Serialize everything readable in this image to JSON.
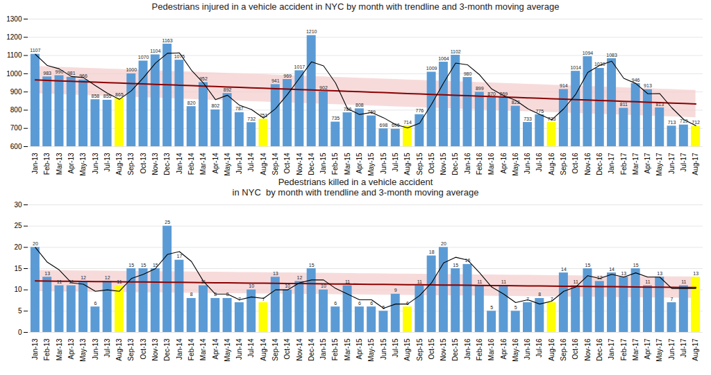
{
  "chart_data": [
    {
      "type": "bar",
      "title": "Pedestrians injured in a vehicle accident in NYC by month with trendline and 3-month moving average",
      "categories": [
        "Jan-13",
        "Feb-13",
        "Mar-13",
        "Apr-13",
        "May-13",
        "Jun-13",
        "Jul-13",
        "Aug-13",
        "Sep-13",
        "Oct-13",
        "Nov-13",
        "Dec-13",
        "Jan-14",
        "Feb-14",
        "Mar-14",
        "Apr-14",
        "May-14",
        "Jun-14",
        "Jul-14",
        "Aug-14",
        "Sep-14",
        "Oct-14",
        "Nov-14",
        "Dec-14",
        "Jan-15",
        "Feb-15",
        "Mar-15",
        "Apr-15",
        "May-15",
        "Jun-15",
        "Jul-15",
        "Aug-15",
        "Sep-15",
        "Oct-15",
        "Nov-15",
        "Dec-15",
        "Jan-16",
        "Feb-16",
        "Mar-16",
        "Apr-16",
        "May-16",
        "Jun-16",
        "Jul-16",
        "Aug-16",
        "Sep-16",
        "Oct-16",
        "Nov-16",
        "Dec-16",
        "Jan-17",
        "Feb-17",
        "Mar-17",
        "Apr-17",
        "May-17",
        "Jun-17",
        "Jul-17",
        "Aug-17"
      ],
      "ylim": [
        600,
        1300
      ],
      "yticks": [
        600,
        700,
        800,
        900,
        1000,
        1100,
        1200,
        1300
      ],
      "grid": true,
      "data_labels": true,
      "series": [
        {
          "type": "bar",
          "colors": [
            "#5B9BD5",
            "#5B9BD5",
            "#5B9BD5",
            "#5B9BD5",
            "#5B9BD5",
            "#5B9BD5",
            "#5B9BD5",
            "#FFFF00",
            "#5B9BD5",
            "#5B9BD5",
            "#5B9BD5",
            "#5B9BD5",
            "#5B9BD5",
            "#5B9BD5",
            "#5B9BD5",
            "#5B9BD5",
            "#5B9BD5",
            "#5B9BD5",
            "#5B9BD5",
            "#FFFF00",
            "#5B9BD5",
            "#5B9BD5",
            "#5B9BD5",
            "#5B9BD5",
            "#5B9BD5",
            "#5B9BD5",
            "#5B9BD5",
            "#5B9BD5",
            "#5B9BD5",
            "#5B9BD5",
            "#5B9BD5",
            "#FFFF00",
            "#5B9BD5",
            "#5B9BD5",
            "#5B9BD5",
            "#5B9BD5",
            "#5B9BD5",
            "#5B9BD5",
            "#5B9BD5",
            "#5B9BD5",
            "#5B9BD5",
            "#5B9BD5",
            "#5B9BD5",
            "#FFFF00",
            "#5B9BD5",
            "#5B9BD5",
            "#5B9BD5",
            "#5B9BD5",
            "#5B9BD5",
            "#5B9BD5",
            "#5B9BD5",
            "#5B9BD5",
            "#5B9BD5",
            "#5B9BD5",
            "#5B9BD5",
            "#FFFF00"
          ],
          "values": [
            1107,
            983,
            990,
            981,
            966,
            858,
            855,
            865,
            1000,
            1070,
            1104,
            1163,
            1075,
            820,
            952,
            802,
            892,
            787,
            732,
            751,
            941,
            969,
            1017,
            1210,
            902,
            735,
            786,
            808,
            769,
            698,
            696,
            714,
            776,
            1009,
            1064,
            1102,
            980,
            899,
            870,
            869,
            822,
            733,
            775,
            733,
            914,
            1014,
            1094,
            1030,
            1083,
            811,
            946,
            913,
            813,
            713,
            719,
            712
          ]
        },
        {
          "type": "area",
          "color": "#F4CCCC",
          "lower": [
            890.71,
            888.32,
            885.92,
            883.53,
            881.13,
            878.74,
            876.34,
            873.95,
            871.55,
            869.16,
            866.76,
            864.37,
            861.97,
            859.58,
            857.19,
            854.79,
            852.4,
            850.0,
            847.61,
            845.21,
            842.82,
            840.42,
            838.03,
            835.63,
            833.24,
            830.84,
            828.45,
            826.05,
            823.66,
            821.27,
            818.87,
            816.48,
            814.08,
            811.69,
            809.29,
            806.9,
            804.5,
            802.11,
            799.71,
            797.32,
            794.92,
            792.53,
            790.13,
            787.74,
            785.35,
            782.95,
            780.56,
            778.16,
            775.77,
            773.37,
            770.98,
            768.58,
            766.19,
            763.79,
            761.4,
            759.0
          ],
          "upper": [
            1040.71,
            1038.32,
            1035.92,
            1033.53,
            1031.13,
            1028.74,
            1026.34,
            1023.95,
            1021.55,
            1019.16,
            1016.76,
            1014.37,
            1011.97,
            1009.58,
            1007.19,
            1004.79,
            1002.4,
            1000.0,
            997.61,
            995.21,
            992.82,
            990.42,
            988.03,
            985.63,
            983.24,
            980.84,
            978.45,
            976.05,
            973.66,
            971.27,
            968.87,
            966.48,
            964.08,
            961.69,
            959.29,
            956.9,
            954.5,
            952.11,
            949.71,
            947.32,
            944.92,
            942.53,
            940.13,
            937.74,
            935.35,
            932.95,
            930.56,
            928.16,
            925.77,
            923.37,
            920.98,
            918.58,
            916.19,
            913.79,
            911.4,
            909.0
          ]
        },
        {
          "type": "line",
          "color": "#8B0000",
          "values": [
            965.71,
            963.32,
            960.92,
            958.53,
            956.13,
            953.74,
            951.34,
            948.95,
            946.55,
            944.16,
            941.76,
            939.37,
            936.97,
            934.58,
            932.19,
            929.79,
            927.4,
            925.0,
            922.61,
            920.21,
            917.82,
            915.42,
            913.03,
            910.63,
            908.24,
            905.84,
            903.45,
            901.05,
            898.66,
            896.27,
            893.87,
            891.48,
            889.08,
            886.69,
            884.29,
            881.9,
            879.5,
            877.11,
            874.71,
            872.32,
            869.92,
            867.53,
            865.13,
            862.74,
            860.35,
            857.95,
            855.56,
            853.16,
            850.77,
            848.37,
            845.98,
            843.58,
            841.19,
            838.79,
            836.4,
            834.0
          ]
        },
        {
          "type": "line",
          "color": "#000000",
          "values": [
            1107,
            1045,
            1026.6667,
            984.6667,
            979,
            935,
            893,
            859.3333,
            906.6667,
            978.3333,
            1058,
            1112.3333,
            1114,
            1019.3333,
            949,
            858,
            882,
            827,
            803.6667,
            756.6667,
            808,
            887,
            975.6667,
            1065.3333,
            1043,
            949,
            807.6667,
            776.3333,
            787.6667,
            758.3333,
            721,
            702.6667,
            728.6667,
            833,
            949.6667,
            1058.3333,
            1048.6667,
            993.6667,
            916.3333,
            879.3333,
            853.6667,
            808,
            776.6667,
            747,
            807.3333,
            887,
            1007.3333,
            1046,
            1069,
            974.6667,
            946.6667,
            890,
            890.6667,
            813,
            748.3333,
            714.6667
          ]
        }
      ]
    },
    {
      "type": "bar",
      "title": "Pedestrians killed in a vehicle accident\nin NYC  by month with trendline and 3-month moving average",
      "categories": [
        "Jan-13",
        "Feb-13",
        "Mar-13",
        "Apr-13",
        "May-13",
        "Jun-13",
        "Jul-13",
        "Aug-13",
        "Sep-13",
        "Oct-13",
        "Nov-13",
        "Dec-13",
        "Jan-14",
        "Feb-14",
        "Mar-14",
        "Apr-14",
        "May-14",
        "Jun-14",
        "Jul-14",
        "Aug-14",
        "Sep-14",
        "Oct-14",
        "Nov-14",
        "Dec-14",
        "Jan-15",
        "Feb-15",
        "Mar-15",
        "Apr-15",
        "May-15",
        "Jun-15",
        "Jul-15",
        "Aug-15",
        "Sep-15",
        "Oct-15",
        "Nov-15",
        "Dec-15",
        "Jan-16",
        "Feb-16",
        "Mar-16",
        "Apr-16",
        "May-16",
        "Jun-16",
        "Jul-16",
        "Aug-16",
        "Sep-16",
        "Oct-16",
        "Nov-16",
        "Dec-16",
        "Jan-17",
        "Feb-17",
        "Mar-17",
        "Apr-17",
        "May-17",
        "Jun-17",
        "Jul-17",
        "Aug-17"
      ],
      "ylim": [
        0,
        30
      ],
      "yticks": [
        0,
        5,
        10,
        15,
        20,
        25,
        30
      ],
      "grid": true,
      "data_labels": true,
      "series": [
        {
          "type": "bar",
          "colors": [
            "#5B9BD5",
            "#5B9BD5",
            "#5B9BD5",
            "#5B9BD5",
            "#5B9BD5",
            "#5B9BD5",
            "#5B9BD5",
            "#FFFF00",
            "#5B9BD5",
            "#5B9BD5",
            "#5B9BD5",
            "#5B9BD5",
            "#5B9BD5",
            "#5B9BD5",
            "#5B9BD5",
            "#5B9BD5",
            "#5B9BD5",
            "#5B9BD5",
            "#5B9BD5",
            "#FFFF00",
            "#5B9BD5",
            "#5B9BD5",
            "#5B9BD5",
            "#5B9BD5",
            "#5B9BD5",
            "#5B9BD5",
            "#5B9BD5",
            "#5B9BD5",
            "#5B9BD5",
            "#5B9BD5",
            "#5B9BD5",
            "#FFFF00",
            "#5B9BD5",
            "#5B9BD5",
            "#5B9BD5",
            "#5B9BD5",
            "#5B9BD5",
            "#5B9BD5",
            "#5B9BD5",
            "#5B9BD5",
            "#5B9BD5",
            "#5B9BD5",
            "#5B9BD5",
            "#FFFF00",
            "#5B9BD5",
            "#5B9BD5",
            "#5B9BD5",
            "#5B9BD5",
            "#5B9BD5",
            "#5B9BD5",
            "#5B9BD5",
            "#5B9BD5",
            "#5B9BD5",
            "#5B9BD5",
            "#5B9BD5",
            "#FFFF00"
          ],
          "values": [
            20,
            13,
            11,
            11,
            12,
            6,
            12,
            11,
            15,
            15,
            15,
            25,
            17,
            8,
            11,
            8,
            8,
            7,
            10,
            7,
            13,
            10,
            12,
            15,
            10,
            6,
            11,
            6,
            6,
            5,
            9,
            6,
            11,
            18,
            20,
            15,
            16,
            11,
            5,
            11,
            5,
            7,
            8,
            7,
            14,
            11,
            15,
            12,
            14,
            13,
            15,
            11,
            13,
            7,
            11,
            13
          ]
        },
        {
          "type": "area",
          "color": "#F4CCCC",
          "lower": [
            9.6,
            9.571,
            9.543,
            9.515,
            9.486,
            9.458,
            9.43,
            9.401,
            9.373,
            9.345,
            9.317,
            9.288,
            9.26,
            9.232,
            9.203,
            9.175,
            9.147,
            9.119,
            9.09,
            9.062,
            9.034,
            9.005,
            8.977,
            8.949,
            8.92,
            8.892,
            8.864,
            8.836,
            8.807,
            8.779,
            8.751,
            8.722,
            8.694,
            8.666,
            8.637,
            8.609,
            8.581,
            8.553,
            8.524,
            8.496,
            8.468,
            8.439,
            8.411,
            8.383,
            8.355,
            8.326,
            8.298,
            8.27,
            8.241,
            8.213,
            8.185,
            8.156,
            8.128,
            8.1,
            8.072,
            8.043
          ],
          "upper": [
            14.6,
            14.571,
            14.543,
            14.515,
            14.486,
            14.458,
            14.43,
            14.401,
            14.373,
            14.345,
            14.317,
            14.288,
            14.26,
            14.232,
            14.203,
            14.175,
            14.147,
            14.119,
            14.09,
            14.062,
            14.034,
            14.005,
            13.977,
            13.949,
            13.92,
            13.892,
            13.864,
            13.836,
            13.807,
            13.779,
            13.751,
            13.722,
            13.694,
            13.666,
            13.637,
            13.609,
            13.581,
            13.553,
            13.524,
            13.496,
            13.468,
            13.439,
            13.411,
            13.383,
            13.355,
            13.326,
            13.298,
            13.27,
            13.241,
            13.213,
            13.185,
            13.156,
            13.128,
            13.1,
            13.072,
            13.043
          ]
        },
        {
          "type": "line",
          "color": "#8B0000",
          "values": [
            12.1,
            12.071,
            12.043,
            12.015,
            11.986,
            11.958,
            11.93,
            11.901,
            11.873,
            11.845,
            11.817,
            11.788,
            11.76,
            11.732,
            11.703,
            11.675,
            11.647,
            11.619,
            11.59,
            11.562,
            11.534,
            11.505,
            11.477,
            11.449,
            11.42,
            11.392,
            11.364,
            11.336,
            11.307,
            11.279,
            11.251,
            11.222,
            11.194,
            11.166,
            11.137,
            11.109,
            11.081,
            11.053,
            11.024,
            10.996,
            10.968,
            10.939,
            10.911,
            10.883,
            10.855,
            10.826,
            10.798,
            10.77,
            10.741,
            10.713,
            10.685,
            10.656,
            10.628,
            10.6,
            10.572,
            10.543
          ]
        },
        {
          "type": "line",
          "color": "#000000",
          "values": [
            20,
            16.5,
            14.6667,
            11.6667,
            11.3333,
            9.6667,
            10,
            9.6667,
            12.6667,
            13.6667,
            15,
            18.3333,
            19,
            16.6667,
            12,
            9,
            9,
            7.6667,
            8.3333,
            8,
            10,
            10,
            11.6667,
            12.3333,
            12.3333,
            10.3333,
            9,
            7.6667,
            7.6667,
            5.6667,
            6.6667,
            6.6667,
            8.6667,
            11.6667,
            16.3333,
            17.6667,
            17,
            14,
            10.6667,
            9,
            7,
            7.6667,
            6.6667,
            7.3333,
            9.6667,
            10.6667,
            13.3333,
            12.6667,
            13.6667,
            13,
            14,
            13,
            13,
            10.3333,
            10.3333,
            10.3333
          ]
        }
      ]
    }
  ]
}
